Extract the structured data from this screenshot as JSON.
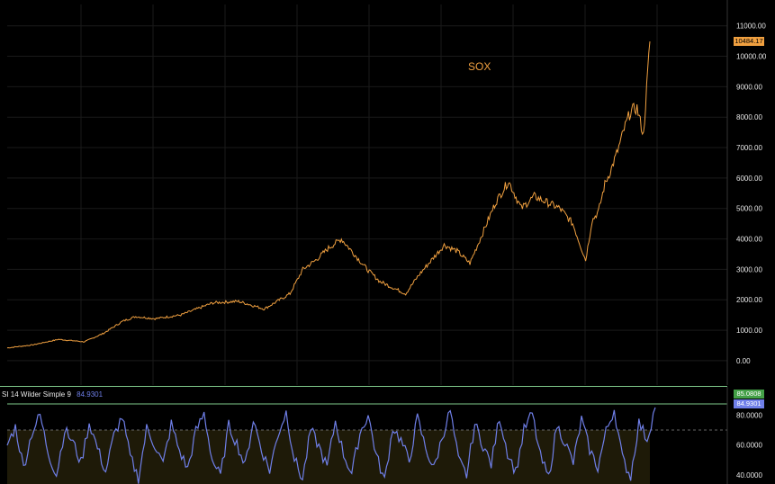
{
  "colors": {
    "background": "#000000",
    "price_line": "#f0a040",
    "rsi_line": "#6f7fe8",
    "rsi_band": "#1e1a08",
    "separator": "#7ec88a",
    "grid": "#1a1a1a",
    "badge_last_price": "#f0a040",
    "badge_rsi_signal": "#43a047",
    "badge_rsi": "#6f7fe8"
  },
  "chart_data": [
    {
      "type": "line",
      "title": "SOX",
      "y_tick_labels": [
        "11000.00",
        "10000.00",
        "9000.00",
        "8000.00",
        "7000.00",
        "6000.00",
        "5000.00",
        "4000.00",
        "3000.00",
        "2000.00",
        "1000.00",
        "0.00"
      ],
      "ylim": [
        -800,
        11700
      ],
      "last_value_label": "10484.17",
      "grid": true,
      "series": [
        {
          "x_index": [
            0,
            4,
            8,
            12,
            15,
            18,
            20,
            23,
            27,
            32,
            36,
            40,
            44,
            46,
            48,
            50,
            52,
            54,
            56,
            58,
            60,
            62,
            64,
            66,
            68,
            70,
            72,
            74,
            76,
            78,
            80,
            82,
            84,
            86,
            88,
            90,
            91,
            92,
            93,
            94,
            95,
            96,
            97,
            98,
            99,
            100
          ],
          "values": [
            420,
            520,
            700,
            620,
            900,
            1300,
            1450,
            1380,
            1500,
            1900,
            1950,
            1700,
            2200,
            3000,
            3300,
            3700,
            4000,
            3500,
            3000,
            2600,
            2400,
            2200,
            2800,
            3300,
            3800,
            3600,
            3200,
            4200,
            5200,
            5900,
            5000,
            5400,
            5200,
            5000,
            4500,
            3300,
            4600,
            4900,
            5800,
            6300,
            6900,
            7600,
            8200,
            8300,
            7400,
            10484
          ]
        }
      ]
    },
    {
      "type": "line",
      "indicator_label": "SI 14 Wilder Simple 9",
      "current_value": "84.9301",
      "y_tick_labels": [
        "80.0000",
        "60.0000",
        "40.0000"
      ],
      "ylim": [
        34,
        88
      ],
      "band": [
        30,
        70
      ],
      "signal_badge": "85.0808",
      "value_badge": "84.9301",
      "series": [
        {
          "values": [
            60,
            72,
            45,
            68,
            80,
            55,
            40,
            70,
            62,
            48,
            75,
            58,
            42,
            66,
            79,
            52,
            38,
            71,
            60,
            47,
            74,
            56,
            44,
            69,
            81,
            50,
            39,
            73,
            61,
            46,
            77,
            57,
            43,
            67,
            82,
            51,
            37,
            70,
            59,
            45,
            76,
            54,
            41,
            68,
            80,
            53,
            36,
            72,
            63,
            49,
            78,
            58,
            44,
            65,
            83,
            50,
            40,
            74,
            60,
            47,
            79,
            55,
            42,
            70,
            81,
            52,
            38,
            73,
            62,
            48,
            77,
            57,
            45,
            69,
            84,
            51,
            39,
            75,
            64,
            85
          ]
        }
      ]
    }
  ]
}
